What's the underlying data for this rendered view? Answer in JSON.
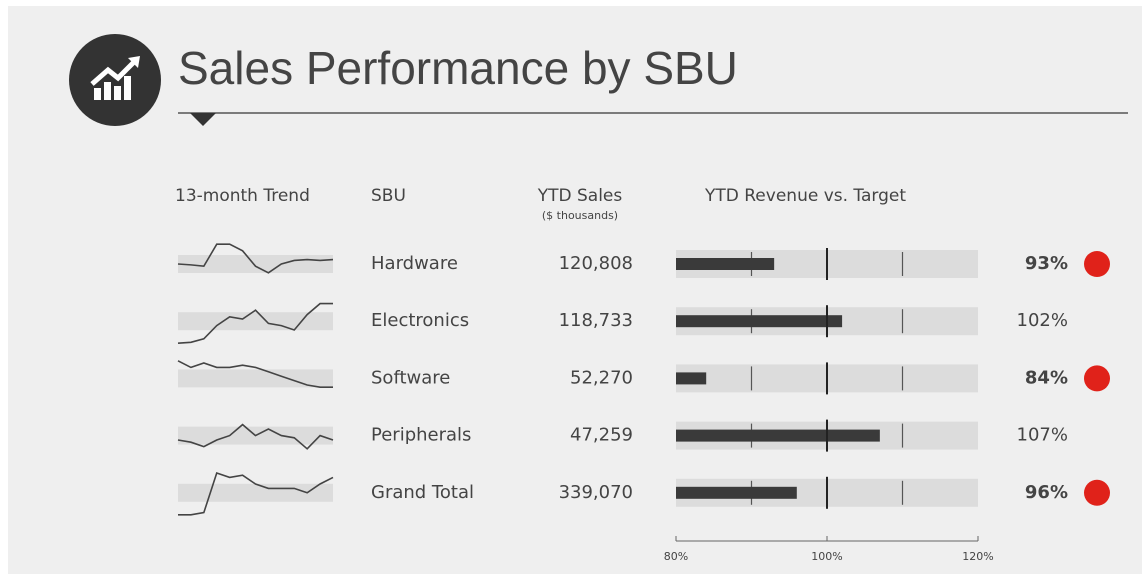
{
  "header": {
    "title": "Sales Performance by SBU"
  },
  "chart_data": {
    "type": "bullet",
    "columns": [
      "13-month Trend",
      "SBU",
      "YTD Sales",
      "YTD Revenue vs. Target"
    ],
    "sales_unit": "($ thousands)",
    "rows": [
      {
        "sbu": "Hardware",
        "sales": "120,808",
        "trend": [
          5,
          4.8,
          4.5,
          9.5,
          9.5,
          8,
          4.5,
          3,
          5,
          5.8,
          6,
          5.8,
          6
        ],
        "value": 93,
        "value_label": "93%",
        "alert": true
      },
      {
        "sbu": "Electronics",
        "sales": "118,733",
        "trend": [
          0,
          0.2,
          1,
          4,
          6,
          5.5,
          7.5,
          4.5,
          4,
          3,
          6.5,
          9,
          9
        ],
        "value": 102,
        "value_label": "102%",
        "alert": false
      },
      {
        "sbu": "Software",
        "sales": "52,270",
        "trend": [
          9,
          7.5,
          8.5,
          7.5,
          7.5,
          8,
          7.5,
          6.5,
          5.5,
          4.5,
          3.5,
          3,
          3
        ],
        "value": 84,
        "value_label": "84%",
        "alert": true
      },
      {
        "sbu": "Peripherals",
        "sales": "47,259",
        "trend": [
          4,
          3.5,
          2.5,
          4,
          5,
          7.5,
          5,
          6.5,
          5,
          4.5,
          2,
          5,
          4
        ],
        "value": 107,
        "value_label": "107%",
        "alert": false
      },
      {
        "sbu": "Grand Total",
        "sales": "339,070",
        "trend": [
          0,
          0,
          0.5,
          9.5,
          8.5,
          9,
          7,
          6,
          6,
          6,
          5,
          7,
          8.5
        ],
        "value": 96,
        "value_label": "96%",
        "alert": true
      }
    ],
    "xlim": [
      80,
      120
    ],
    "xticks": [
      {
        "value": 80,
        "label": "80%"
      },
      {
        "value": 100,
        "label": "100%"
      },
      {
        "value": 120,
        "label": "120%"
      }
    ],
    "band_lines": [
      90,
      110
    ],
    "target": 100,
    "trend_ylim": [
      0,
      10
    ],
    "bar_color": "#3a3a3a",
    "band_color": "#dcdcdc",
    "alert_color": "#e0221a"
  }
}
